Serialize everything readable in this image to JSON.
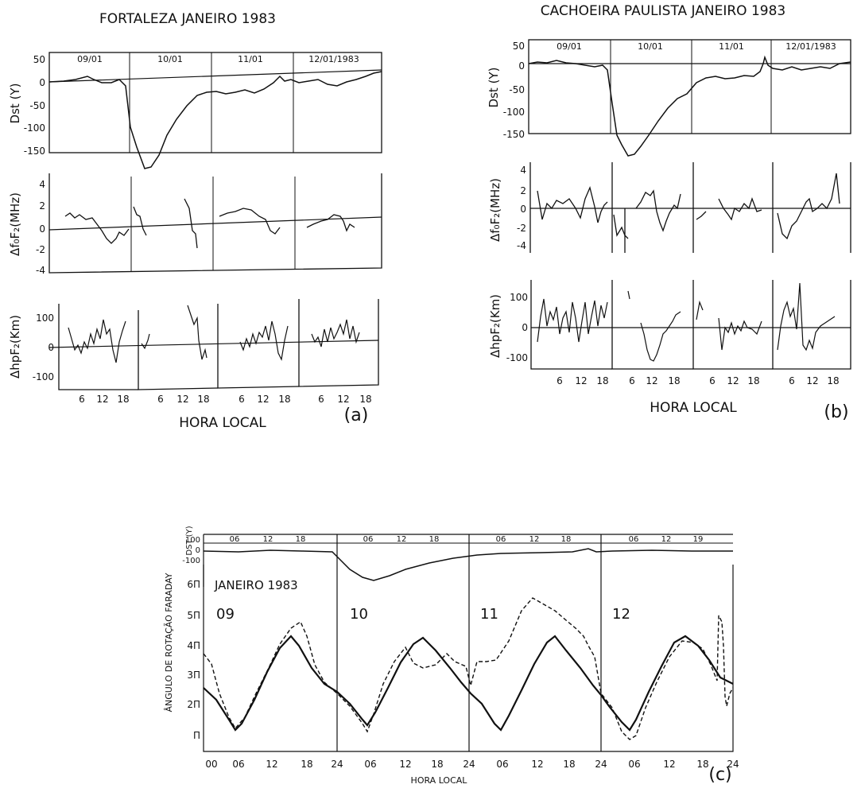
{
  "figure": {
    "panel_a": {
      "title": "FORTALEZA JANEIRO 1983",
      "day_labels": [
        "09/01",
        "10/01",
        "11/01",
        "12/01/1983"
      ],
      "ylabels": [
        "Dst (Y)",
        "Δf₀F₂(MHz)",
        "ΔhpF₂(Km)"
      ],
      "dst_ticks": [
        "50",
        "0",
        "-50",
        "-100",
        "-150"
      ],
      "fof2_ticks": [
        "4",
        "2",
        "0",
        "-2",
        "-4"
      ],
      "hpf2_ticks": [
        "100",
        "0",
        "-100"
      ],
      "hour_ticks": [
        "6",
        "12",
        "18"
      ],
      "xlabel": "HORA LOCAL",
      "panel_label": "(a)"
    },
    "panel_b": {
      "title": "CACHOEIRA PAULISTA JANEIRO 1983",
      "day_labels": [
        "09/01",
        "10/01",
        "11/01",
        "12/01/1983"
      ],
      "ylabels": [
        "Dst (Y)",
        "Δf₀F₂(MHz)",
        "ΔhpF₂(Km)"
      ],
      "dst_ticks": [
        "50",
        "0",
        "-50",
        "-100",
        "-150"
      ],
      "fof2_ticks": [
        "4",
        "2",
        "0",
        "-2",
        "-4"
      ],
      "hpf2_ticks": [
        "100",
        "0",
        "-100"
      ],
      "hour_ticks": [
        "6",
        "12",
        "18"
      ],
      "xlabel": "HORA LOCAL",
      "panel_label": "(b)"
    },
    "panel_c": {
      "dst_label": "DST (Y)",
      "dst_ticks": [
        "100",
        "0",
        "-100"
      ],
      "top_hour_ticks": [
        "06",
        "12",
        "18"
      ],
      "top_hour_ticks_last": [
        "06",
        "12",
        "19"
      ],
      "title": "JANEIRO 1983",
      "ylabel": "ÂNGULO DE ROTAÇÃO FARADAY",
      "pi_ticks": [
        "6Π",
        "5Π",
        "4Π",
        "3Π",
        "2Π",
        "Π"
      ],
      "day_labels": [
        "09",
        "10",
        "11",
        "12"
      ],
      "x_ticks": [
        "00",
        "06",
        "12",
        "18",
        "24",
        "06",
        "12",
        "18",
        "24",
        "06",
        "12",
        "18",
        "24",
        "06",
        "12",
        "18",
        "24"
      ],
      "xlabel": "HORA LOCAL",
      "panel_label": "(c)"
    }
  },
  "chart_data": [
    {
      "type": "line",
      "title": "FORTALEZA JANEIRO 1983",
      "xlabel": "HORA LOCAL",
      "days": [
        "09/01",
        "10/01",
        "11/01",
        "12/01/1983"
      ],
      "x_hours": [
        0,
        12,
        24,
        30,
        36,
        42,
        48,
        60,
        72,
        84,
        96
      ],
      "subplots": [
        {
          "ylabel": "Dst (Y)",
          "ylim": [
            -150,
            50
          ],
          "series": [
            {
              "values": [
                2,
                5,
                5,
                -10,
                -160,
                -175,
                -110,
                -25,
                -5,
                0,
                15
              ]
            }
          ]
        },
        {
          "ylabel": "Δf₀F₂(MHz)",
          "ylim": [
            -4,
            4
          ],
          "series": [
            {
              "values": [
                1.5,
                -1.5,
                0.5,
                2,
                1,
                3,
                -2,
                2,
                -0.5,
                1,
                0.5
              ]
            }
          ]
        },
        {
          "ylabel": "ΔhpF₂(Km)",
          "ylim": [
            -100,
            100
          ],
          "series": [
            {
              "values": [
                60,
                0,
                80,
                20,
                30,
                130,
                -50,
                40,
                -30,
                50,
                60
              ]
            }
          ]
        }
      ]
    },
    {
      "type": "line",
      "title": "CACHOEIRA PAULISTA JANEIRO 1983",
      "xlabel": "HORA LOCAL",
      "days": [
        "09/01",
        "10/01",
        "11/01",
        "12/01/1983"
      ],
      "x_hours": [
        0,
        12,
        24,
        30,
        36,
        42,
        48,
        60,
        72,
        84,
        96
      ],
      "subplots": [
        {
          "ylabel": "Dst (Y)",
          "ylim": [
            -150,
            50
          ],
          "series": [
            {
              "values": [
                0,
                5,
                -5,
                -100,
                -170,
                -150,
                -80,
                -20,
                -5,
                5,
                0
              ]
            }
          ]
        },
        {
          "ylabel": "Δf₀F₂(MHz)",
          "ylim": [
            -4,
            4
          ],
          "series": [
            {
              "values": [
                1,
                2,
                0.5,
                -3,
                1.5,
                -2,
                0,
                1,
                -3.5,
                1.5,
                3.5
              ]
            }
          ]
        },
        {
          "ylabel": "ΔhpF₂(Km)",
          "ylim": [
            -100,
            100
          ],
          "series": [
            {
              "values": [
                50,
                80,
                60,
                30,
                -120,
                -50,
                0,
                60,
                -50,
                140,
                20
              ]
            }
          ]
        }
      ]
    },
    {
      "type": "line",
      "title": "JANEIRO 1983",
      "xlabel": "HORA LOCAL",
      "ylabel": "ÂNGULO DE ROTAÇÃO FARADAY",
      "days": [
        "09",
        "10",
        "11",
        "12"
      ],
      "x_hours": [
        0,
        5,
        16,
        24,
        29,
        39,
        48,
        53,
        63,
        72,
        77,
        87,
        96
      ],
      "series": [
        {
          "values": [
            2.0,
            1.0,
            4.2,
            2.0,
            0.8,
            4.2,
            2.0,
            1.0,
            4.3,
            2.2,
            0.9,
            4.3,
            2.4
          ]
        },
        {
          "values": [
            3.3,
            1.1,
            4.6,
            2.1,
            0.6,
            3.4,
            2.2,
            2.3,
            5.4,
            2.0,
            0.7,
            4.2,
            2.6
          ]
        }
      ],
      "dst_subplot": {
        "ylabel": "DST (Y)",
        "ylim": [
          -100,
          100
        ],
        "values": [
          0,
          0,
          5,
          -20,
          -60,
          -40,
          -10,
          -5,
          5,
          5,
          2,
          5,
          5
        ]
      },
      "ylim_pi": [
        0,
        6
      ]
    }
  ]
}
